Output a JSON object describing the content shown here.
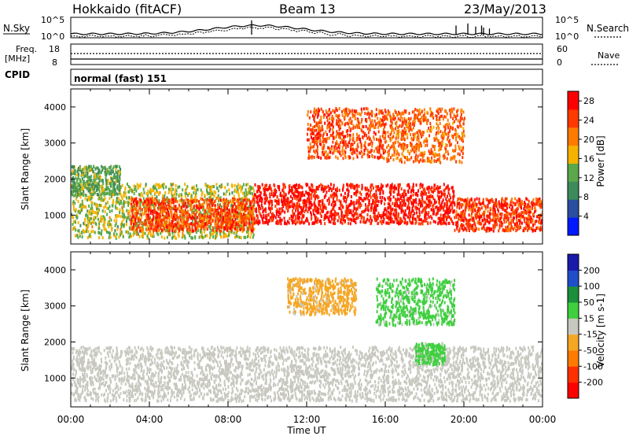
{
  "header": {
    "site_title": "Hokkaido (fitACF)",
    "beam": "Beam 13",
    "date": "23/May/2013"
  },
  "noise_panel": {
    "left_label": "N.Sky",
    "right_label": "N.Search",
    "ticks_left": [
      "10^5",
      "10^0"
    ],
    "ticks_right": [
      "10^5",
      "10^0"
    ]
  },
  "freq_panel": {
    "left_label_line1": "Freq.",
    "left_label_line2": "[MHz]",
    "right_label": "Nave",
    "ticks_left": [
      "18",
      "8"
    ],
    "ticks_right": [
      "60",
      "0"
    ]
  },
  "cpid_panel": {
    "label": "CPID",
    "mode_text": "normal (fast) 151"
  },
  "colors": {
    "power_scale": [
      "#0019ff",
      "#2a4ea0",
      "#3d8a5a",
      "#5aa84a",
      "#f5b300",
      "#ff7a00",
      "#ff3a00",
      "#ff0000"
    ],
    "velocity_scale": [
      "#1a1aaa",
      "#1f4ec9",
      "#1b8f3a",
      "#3fcf3f",
      "#c8c8c0",
      "#f5a623",
      "#ff7a00",
      "#ff3000",
      "#ff0000"
    ]
  },
  "chart_data": [
    {
      "type": "heatmap",
      "name": "power",
      "ylabel": "Slant Range [km]",
      "yticks": [
        "1000",
        "2000",
        "3000",
        "4000"
      ],
      "ylim": [
        200,
        4500
      ],
      "xlim": [
        "00:00",
        "24:00"
      ],
      "colorbar_label": "Power [dB]",
      "colorbar_ticks": [
        "4",
        "8",
        "12",
        "16",
        "20",
        "24",
        "28"
      ],
      "colorbar_range": [
        0,
        30
      ],
      "features": [
        {
          "start_h": 0.0,
          "end_h": 9.3,
          "range_km_low": 400,
          "range_km_high": 1900,
          "level": 15
        },
        {
          "start_h": 3.0,
          "end_h": 9.3,
          "range_km_low": 600,
          "range_km_high": 1500,
          "level": 24
        },
        {
          "start_h": 9.3,
          "end_h": 19.5,
          "range_km_low": 800,
          "range_km_high": 1900,
          "level": 27
        },
        {
          "start_h": 19.5,
          "end_h": 24.0,
          "range_km_low": 600,
          "range_km_high": 1500,
          "level": 25
        },
        {
          "start_h": 12.0,
          "end_h": 16.0,
          "range_km_low": 2600,
          "range_km_high": 4000,
          "level": 24
        },
        {
          "start_h": 16.0,
          "end_h": 20.0,
          "range_km_low": 2500,
          "range_km_high": 4000,
          "level": 22
        },
        {
          "start_h": 0.0,
          "end_h": 2.5,
          "range_km_low": 1600,
          "range_km_high": 2400,
          "level": 12
        }
      ]
    },
    {
      "type": "heatmap",
      "name": "velocity",
      "ylabel": "Slant Range [km]",
      "yticks": [
        "1000",
        "2000",
        "3000",
        "4000"
      ],
      "ylim": [
        200,
        4500
      ],
      "xlabel": "Time UT",
      "xticks": [
        "00:00",
        "04:00",
        "08:00",
        "12:00",
        "16:00",
        "20:00",
        "00:00"
      ],
      "colorbar_label": "Velocity [m s-1]",
      "colorbar_ticks": [
        "200",
        "100",
        "50",
        "15",
        "-15",
        "-50",
        "-100",
        "-200"
      ],
      "colorbar_range": [
        -250,
        250
      ],
      "features": [
        {
          "start_h": 0.0,
          "end_h": 24.0,
          "range_km_low": 400,
          "range_km_high": 1900,
          "value": 0
        },
        {
          "start_h": 11.0,
          "end_h": 14.5,
          "range_km_low": 2800,
          "range_km_high": 3800,
          "value": -40
        },
        {
          "start_h": 15.5,
          "end_h": 19.5,
          "range_km_low": 2500,
          "range_km_high": 3800,
          "value": 40
        },
        {
          "start_h": 17.5,
          "end_h": 19.0,
          "range_km_low": 1400,
          "range_km_high": 2000,
          "value": 40
        }
      ]
    }
  ]
}
